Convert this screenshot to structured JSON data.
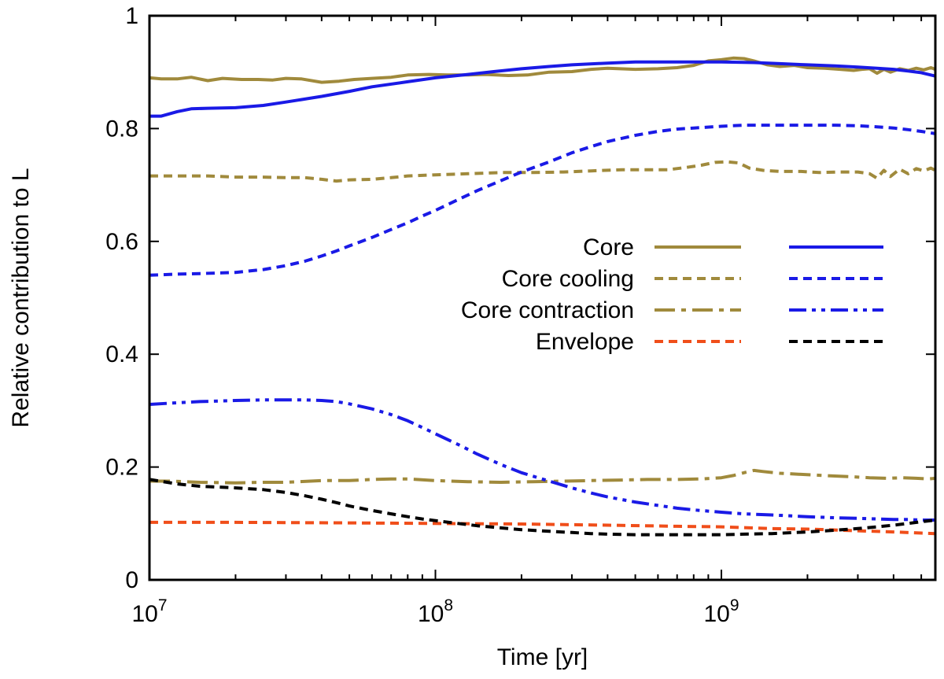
{
  "chart_data": {
    "type": "line",
    "title": "",
    "xlabel": "Time [yr]",
    "ylabel": "Relative contribution to L",
    "xscale": "log",
    "xlim": [
      10000000,
      5600000000
    ],
    "ylim": [
      0,
      1
    ],
    "grid": false,
    "legend_position": "center-right",
    "x_ticks": [
      {
        "value": 10000000,
        "base": "10",
        "exp": "7"
      },
      {
        "value": 100000000,
        "base": "10",
        "exp": "8"
      },
      {
        "value": 1000000000,
        "base": "10",
        "exp": "9"
      }
    ],
    "y_ticks": [
      {
        "value": 0,
        "label": "0"
      },
      {
        "value": 0.2,
        "label": "0.2"
      },
      {
        "value": 0.4,
        "label": "0.4"
      },
      {
        "value": 0.6,
        "label": "0.6"
      },
      {
        "value": 0.8,
        "label": "0.8"
      },
      {
        "value": 1,
        "label": "1"
      }
    ],
    "colors": {
      "gold": "#a08a3c",
      "blue": "#1a1ae6",
      "orange": "#f04e1a",
      "black": "#000000"
    },
    "legend": [
      {
        "label": "Core",
        "left_series": "core-gold",
        "right_series": "core-blue"
      },
      {
        "label": "Core cooling",
        "left_series": "cooling-gold",
        "right_series": "cooling-blue"
      },
      {
        "label": "Core contraction",
        "left_series": "contraction-gold",
        "right_series": "contraction-blue"
      },
      {
        "label": "Envelope",
        "left_series": "envelope-orange",
        "right_series": "envelope-black"
      }
    ],
    "series": [
      {
        "id": "core-gold",
        "name": "Core",
        "color": "gold",
        "style": "solid",
        "x": [
          10000000,
          11000000,
          12500000,
          14000000,
          16000000,
          18000000,
          21000000,
          24000000,
          27000000,
          30000000,
          34000000,
          40000000,
          46000000,
          52000000,
          60000000,
          70000000,
          80000000,
          95000000,
          110000000,
          130000000,
          150000000,
          180000000,
          210000000,
          250000000,
          300000000,
          350000000,
          400000000,
          500000000,
          600000000,
          700000000,
          800000000,
          900000000,
          1000000000,
          1100000000,
          1200000000,
          1300000000,
          1450000000,
          1600000000,
          1800000000,
          2000000000,
          2300000000,
          2600000000,
          2900000000,
          3100000000,
          3300000000,
          3500000000,
          3700000000,
          3900000000,
          4200000000,
          4500000000,
          4800000000,
          5100000000,
          5400000000,
          5600000000
        ],
        "y": [
          0.89,
          0.888,
          0.888,
          0.891,
          0.885,
          0.889,
          0.887,
          0.887,
          0.886,
          0.889,
          0.888,
          0.882,
          0.884,
          0.887,
          0.889,
          0.891,
          0.895,
          0.896,
          0.895,
          0.895,
          0.896,
          0.894,
          0.895,
          0.9,
          0.901,
          0.905,
          0.907,
          0.905,
          0.906,
          0.908,
          0.912,
          0.92,
          0.922,
          0.925,
          0.924,
          0.92,
          0.913,
          0.91,
          0.912,
          0.908,
          0.907,
          0.905,
          0.903,
          0.905,
          0.906,
          0.898,
          0.905,
          0.9,
          0.906,
          0.903,
          0.907,
          0.904,
          0.908,
          0.905
        ]
      },
      {
        "id": "core-blue",
        "name": "Core",
        "color": "blue",
        "style": "solid",
        "x": [
          10000000,
          11000000,
          12500000,
          14000000,
          16000000,
          20000000,
          25000000,
          30000000,
          40000000,
          50000000,
          60000000,
          80000000,
          100000000,
          130000000,
          160000000,
          200000000,
          250000000,
          300000000,
          400000000,
          500000000,
          600000000,
          800000000,
          1000000000,
          1300000000,
          1600000000,
          2000000000,
          2500000000,
          3000000000,
          3500000000,
          4000000000,
          4500000000,
          5000000000,
          5600000000
        ],
        "y": [
          0.822,
          0.822,
          0.83,
          0.835,
          0.836,
          0.837,
          0.841,
          0.847,
          0.857,
          0.866,
          0.874,
          0.883,
          0.89,
          0.896,
          0.901,
          0.906,
          0.91,
          0.913,
          0.916,
          0.918,
          0.918,
          0.918,
          0.918,
          0.917,
          0.915,
          0.913,
          0.911,
          0.909,
          0.907,
          0.905,
          0.902,
          0.899,
          0.893
        ]
      },
      {
        "id": "cooling-gold",
        "name": "Core cooling",
        "color": "gold",
        "style": "dashed",
        "x": [
          10000000,
          13000000,
          16000000,
          20000000,
          25000000,
          30000000,
          35000000,
          40000000,
          45000000,
          50000000,
          60000000,
          70000000,
          80000000,
          100000000,
          130000000,
          170000000,
          220000000,
          280000000,
          350000000,
          450000000,
          550000000,
          650000000,
          750000000,
          850000000,
          950000000,
          1050000000,
          1150000000,
          1250000000,
          1400000000,
          1600000000,
          1900000000,
          2200000000,
          2600000000,
          3000000000,
          3300000000,
          3500000000,
          3700000000,
          3900000000,
          4200000000,
          4500000000,
          4800000000,
          5100000000,
          5400000000,
          5600000000
        ],
        "y": [
          0.716,
          0.716,
          0.716,
          0.714,
          0.714,
          0.713,
          0.713,
          0.71,
          0.707,
          0.709,
          0.71,
          0.713,
          0.716,
          0.718,
          0.72,
          0.722,
          0.722,
          0.723,
          0.725,
          0.727,
          0.727,
          0.727,
          0.731,
          0.735,
          0.74,
          0.741,
          0.739,
          0.73,
          0.726,
          0.724,
          0.724,
          0.722,
          0.723,
          0.723,
          0.72,
          0.712,
          0.726,
          0.715,
          0.728,
          0.72,
          0.729,
          0.725,
          0.73,
          0.726
        ]
      },
      {
        "id": "cooling-blue",
        "name": "Core cooling",
        "color": "blue",
        "style": "dashed",
        "x": [
          10000000,
          12500000,
          15000000,
          20000000,
          25000000,
          30000000,
          35000000,
          40000000,
          45000000,
          50000000,
          60000000,
          70000000,
          80000000,
          90000000,
          100000000,
          120000000,
          140000000,
          170000000,
          200000000,
          250000000,
          300000000,
          350000000,
          400000000,
          500000000,
          600000000,
          700000000,
          800000000,
          1000000000,
          1200000000,
          1500000000,
          2000000000,
          2500000000,
          3000000000,
          3500000000,
          4000000000,
          4500000000,
          5000000000,
          5600000000
        ],
        "y": [
          0.54,
          0.542,
          0.543,
          0.545,
          0.55,
          0.557,
          0.565,
          0.574,
          0.583,
          0.592,
          0.607,
          0.621,
          0.633,
          0.645,
          0.655,
          0.674,
          0.69,
          0.708,
          0.723,
          0.741,
          0.757,
          0.768,
          0.777,
          0.788,
          0.795,
          0.799,
          0.801,
          0.804,
          0.806,
          0.806,
          0.806,
          0.806,
          0.805,
          0.803,
          0.801,
          0.798,
          0.795,
          0.791
        ]
      },
      {
        "id": "contraction-gold",
        "name": "Core contraction",
        "color": "gold",
        "style": "dashdot",
        "x": [
          10000000,
          12000000,
          15000000,
          20000000,
          25000000,
          30000000,
          40000000,
          50000000,
          60000000,
          70000000,
          80000000,
          100000000,
          130000000,
          170000000,
          220000000,
          280000000,
          350000000,
          450000000,
          550000000,
          700000000,
          850000000,
          1000000000,
          1100000000,
          1200000000,
          1300000000,
          1400000000,
          1600000000,
          1900000000,
          2300000000,
          2800000000,
          3300000000,
          3800000000,
          4300000000,
          4800000000,
          5300000000,
          5600000000
        ],
        "y": [
          0.175,
          0.175,
          0.173,
          0.172,
          0.173,
          0.173,
          0.176,
          0.176,
          0.178,
          0.179,
          0.179,
          0.176,
          0.174,
          0.173,
          0.174,
          0.175,
          0.176,
          0.177,
          0.178,
          0.178,
          0.179,
          0.181,
          0.185,
          0.19,
          0.194,
          0.192,
          0.189,
          0.187,
          0.185,
          0.183,
          0.181,
          0.18,
          0.181,
          0.18,
          0.179,
          0.18
        ]
      },
      {
        "id": "contraction-blue",
        "name": "Core contraction",
        "color": "blue",
        "style": "dashdotdot",
        "x": [
          10000000,
          12500000,
          15000000,
          20000000,
          25000000,
          30000000,
          35000000,
          40000000,
          45000000,
          50000000,
          60000000,
          70000000,
          80000000,
          90000000,
          100000000,
          120000000,
          140000000,
          170000000,
          200000000,
          250000000,
          300000000,
          350000000,
          400000000,
          500000000,
          600000000,
          700000000,
          800000000,
          1000000000,
          1200000000,
          1500000000,
          2000000000,
          2500000000,
          3000000000,
          3500000000,
          4000000000,
          4500000000,
          5000000000,
          5600000000
        ],
        "y": [
          0.311,
          0.314,
          0.316,
          0.318,
          0.319,
          0.319,
          0.319,
          0.318,
          0.316,
          0.312,
          0.303,
          0.293,
          0.282,
          0.27,
          0.259,
          0.24,
          0.223,
          0.204,
          0.19,
          0.175,
          0.163,
          0.154,
          0.147,
          0.138,
          0.132,
          0.127,
          0.124,
          0.12,
          0.117,
          0.115,
          0.112,
          0.11,
          0.109,
          0.108,
          0.107,
          0.107,
          0.106,
          0.106
        ]
      },
      {
        "id": "envelope-orange",
        "name": "Envelope",
        "color": "orange",
        "style": "dashed",
        "x": [
          10000000,
          20000000,
          50000000,
          100000000,
          200000000,
          400000000,
          700000000,
          1000000000,
          1500000000,
          2000000000,
          3000000000,
          4000000000,
          5000000000,
          5600000000
        ],
        "y": [
          0.102,
          0.102,
          0.101,
          0.1,
          0.099,
          0.097,
          0.095,
          0.094,
          0.091,
          0.09,
          0.087,
          0.085,
          0.083,
          0.082
        ]
      },
      {
        "id": "envelope-black",
        "name": "Envelope",
        "color": "black",
        "style": "dashed",
        "x": [
          10000000,
          12500000,
          15000000,
          20000000,
          25000000,
          30000000,
          35000000,
          40000000,
          45000000,
          50000000,
          60000000,
          70000000,
          80000000,
          90000000,
          100000000,
          120000000,
          140000000,
          170000000,
          200000000,
          250000000,
          300000000,
          350000000,
          400000000,
          500000000,
          600000000,
          700000000,
          800000000,
          1000000000,
          1200000000,
          1500000000,
          2000000000,
          2500000000,
          3000000000,
          3500000000,
          4000000000,
          4500000000,
          5000000000,
          5600000000
        ],
        "y": [
          0.178,
          0.17,
          0.166,
          0.163,
          0.16,
          0.155,
          0.149,
          0.143,
          0.137,
          0.131,
          0.123,
          0.117,
          0.112,
          0.108,
          0.105,
          0.1,
          0.096,
          0.092,
          0.089,
          0.086,
          0.084,
          0.082,
          0.081,
          0.08,
          0.08,
          0.08,
          0.08,
          0.08,
          0.081,
          0.082,
          0.085,
          0.088,
          0.091,
          0.094,
          0.097,
          0.1,
          0.103,
          0.106
        ]
      }
    ]
  }
}
